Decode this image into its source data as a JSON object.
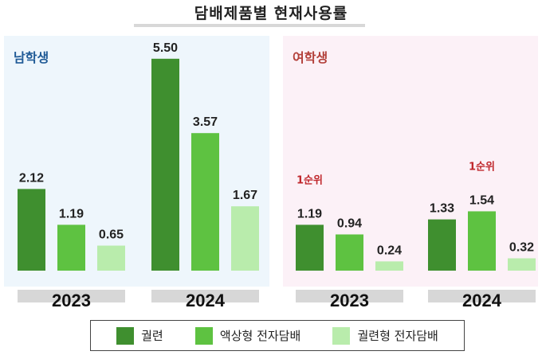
{
  "title": "담배제품별 현재사용률",
  "colors": {
    "cigarette": "#3f8f2f",
    "liquid": "#5ec241",
    "heated": "#b9ecac"
  },
  "legend": [
    "궐련",
    "액상형 전자담배",
    "궐련형 전자담배"
  ],
  "chart_data": [
    {
      "type": "bar",
      "title": "남학생",
      "categories": [
        "2023",
        "2024"
      ],
      "series": [
        {
          "name": "궐련",
          "values": [
            2.12,
            5.5
          ]
        },
        {
          "name": "액상형 전자담배",
          "values": [
            1.19,
            3.57
          ]
        },
        {
          "name": "궐련형 전자담배",
          "values": [
            0.65,
            1.67
          ]
        }
      ],
      "value_labels": [
        [
          "2.12",
          "1.19",
          "0.65"
        ],
        [
          "5.50",
          "3.57",
          "1.67"
        ]
      ],
      "annotations": []
    },
    {
      "type": "bar",
      "title": "여학생",
      "categories": [
        "2023",
        "2024"
      ],
      "series": [
        {
          "name": "궐련",
          "values": [
            1.19,
            1.33
          ]
        },
        {
          "name": "액상형 전자담배",
          "values": [
            0.94,
            1.54
          ]
        },
        {
          "name": "궐련형 전자담배",
          "values": [
            0.24,
            0.32
          ]
        }
      ],
      "value_labels": [
        [
          "1.19",
          "0.94",
          "0.24"
        ],
        [
          "1.33",
          "1.54",
          "0.32"
        ]
      ],
      "annotations": [
        {
          "text": "1순위",
          "category": "2023",
          "series": "궐련"
        },
        {
          "text": "1순위",
          "category": "2024",
          "series": "액상형 전자담배"
        }
      ]
    }
  ]
}
